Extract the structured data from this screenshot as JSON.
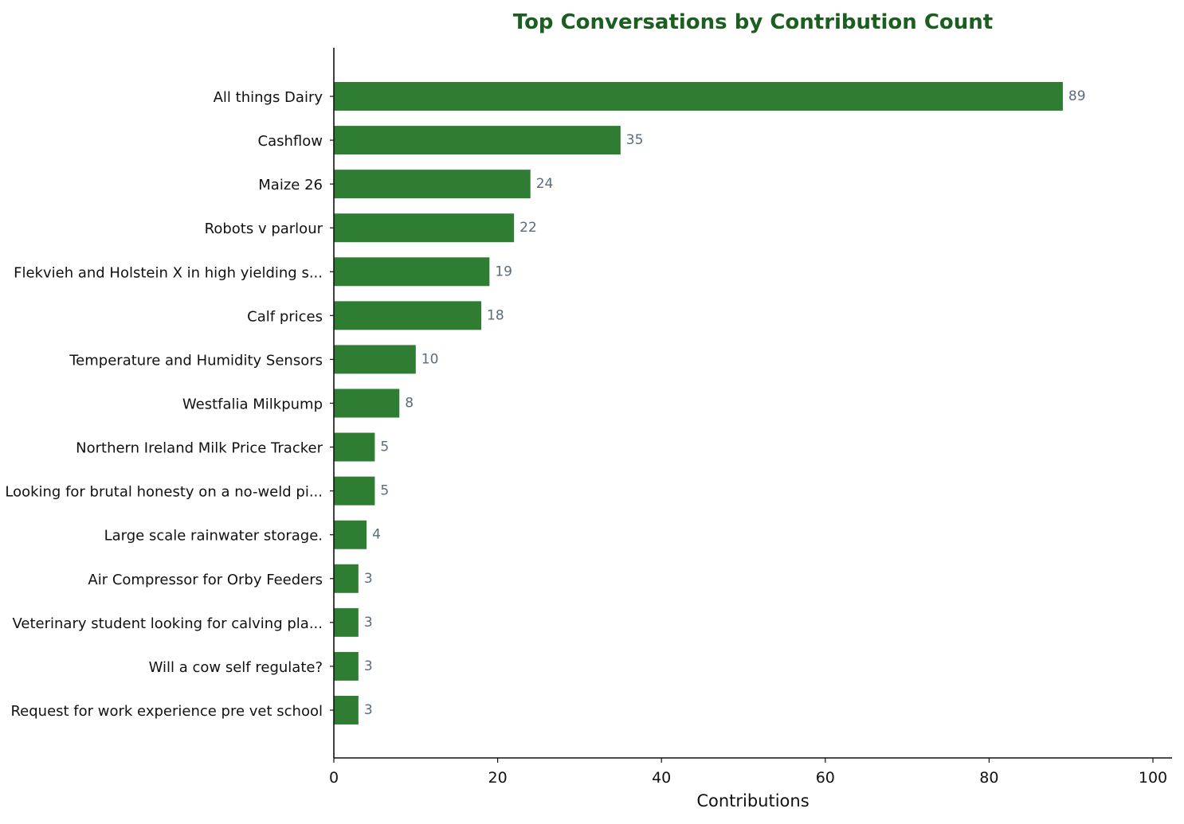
{
  "chart_data": {
    "type": "bar",
    "orientation": "horizontal",
    "title": "Top Conversations by Contribution Count",
    "xlabel": "Contributions",
    "ylabel": "",
    "xlim": [
      0,
      100
    ],
    "xticks": [
      0,
      20,
      40,
      60,
      80,
      100
    ],
    "grid": false,
    "categories": [
      "All things Dairy",
      "Cashflow",
      "Maize 26",
      "Robots v parlour",
      "Flekvieh and Holstein X in high yielding s...",
      "Calf prices",
      "Temperature and Humidity Sensors",
      "Westfalia Milkpump",
      "Northern Ireland Milk Price Tracker",
      "Looking for brutal honesty on a no-weld pi...",
      "Large scale rainwater storage.",
      "Air Compressor for Orby Feeders",
      "Veterinary student looking for calving pla...",
      "Will a cow self regulate?",
      "Request for work experience pre vet school"
    ],
    "values": [
      89,
      35,
      24,
      22,
      19,
      18,
      10,
      8,
      5,
      5,
      4,
      3,
      3,
      3,
      3
    ],
    "colors": {
      "bar": "#2e7d32",
      "title": "#1b5e20",
      "value_label": "#5a6b7b",
      "axis": "#111111"
    }
  }
}
